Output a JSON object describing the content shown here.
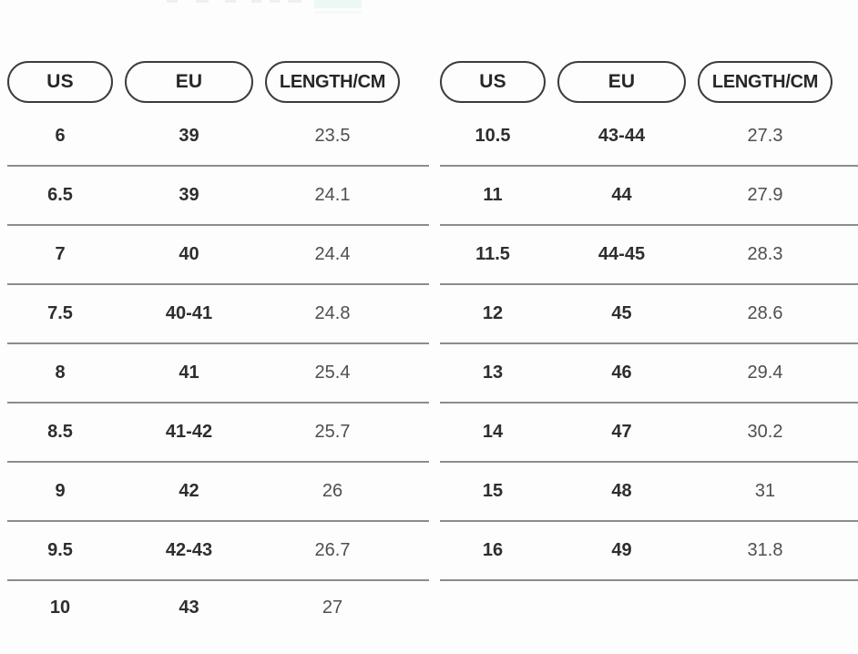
{
  "colors": {
    "background": "#fdfdfd",
    "row_line": "#8c8c8c",
    "pill_border": "#3c3c3c",
    "header_text": "#262626",
    "size_text": "#2e2e2e",
    "length_text": "#4f4f4f"
  },
  "tables": [
    {
      "headers": [
        "US",
        "EU",
        "LENGTH/CM"
      ],
      "rows": [
        {
          "us": "6",
          "eu": "39",
          "length": "23.5"
        },
        {
          "us": "6.5",
          "eu": "39",
          "length": "24.1"
        },
        {
          "us": "7",
          "eu": "40",
          "length": "24.4"
        },
        {
          "us": "7.5",
          "eu": "40-41",
          "length": "24.8"
        },
        {
          "us": "8",
          "eu": "41",
          "length": "25.4"
        },
        {
          "us": "8.5",
          "eu": "41-42",
          "length": "25.7"
        },
        {
          "us": "9",
          "eu": "42",
          "length": "26"
        },
        {
          "us": "9.5",
          "eu": "42-43",
          "length": "26.7"
        },
        {
          "us": "10",
          "eu": "43",
          "length": "27"
        }
      ]
    },
    {
      "headers": [
        "US",
        "EU",
        "LENGTH/CM"
      ],
      "rows": [
        {
          "us": "10.5",
          "eu": "43-44",
          "length": "27.3"
        },
        {
          "us": "11",
          "eu": "44",
          "length": "27.9"
        },
        {
          "us": "11.5",
          "eu": "44-45",
          "length": "28.3"
        },
        {
          "us": "12",
          "eu": "45",
          "length": "28.6"
        },
        {
          "us": "13",
          "eu": "46",
          "length": "29.4"
        },
        {
          "us": "14",
          "eu": "47",
          "length": "30.2"
        },
        {
          "us": "15",
          "eu": "48",
          "length": "31"
        },
        {
          "us": "16",
          "eu": "49",
          "length": "31.8"
        }
      ]
    }
  ]
}
